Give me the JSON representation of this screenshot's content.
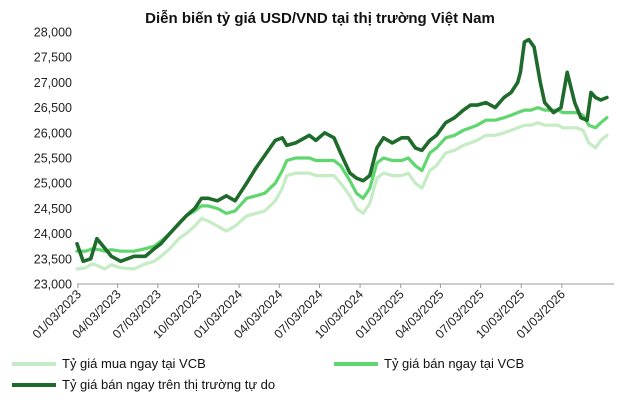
{
  "chart_data": {
    "type": "line",
    "title": "Diễn biến tỷ giá USD/VND tại thị trường Việt Nam",
    "xlabel": "",
    "ylabel": "",
    "ylim": [
      23000,
      28000
    ],
    "yticks": [
      23000,
      23500,
      24000,
      24500,
      25000,
      25500,
      26000,
      26500,
      27000,
      27500,
      28000
    ],
    "ytick_labels": [
      "23,000",
      "23,500",
      "24,000",
      "24,500",
      "25,000",
      "25,500",
      "26,000",
      "26,500",
      "27,000",
      "27,500",
      "28,000"
    ],
    "xlim": [
      "2023-01-01",
      "2026-05-01"
    ],
    "xticks": [
      "2023-01-03",
      "2023-04-03",
      "2023-07-03",
      "2023-10-03",
      "2024-01-03",
      "2024-04-03",
      "2024-07-03",
      "2024-10-03",
      "2025-01-03",
      "2025-04-03",
      "2025-07-03",
      "2025-10-03",
      "2026-01-03"
    ],
    "xtick_labels": [
      "01/03/2023",
      "04/03/2023",
      "07/03/2023",
      "10/03/2023",
      "01/03/2024",
      "04/03/2024",
      "07/03/2024",
      "10/03/2024",
      "01/03/2025",
      "04/03/2025",
      "07/03/2025",
      "10/03/2025",
      "01/03/2026"
    ],
    "grid": false,
    "legend_position": "bottom",
    "series": [
      {
        "name": "Tỷ giá mua ngay tại VCB",
        "color": "#c5ecc4",
        "x": [
          "2023-01-01",
          "2023-01-20",
          "2023-02-05",
          "2023-02-20",
          "2023-03-05",
          "2023-03-20",
          "2023-04-10",
          "2023-05-10",
          "2023-06-05",
          "2023-06-25",
          "2023-07-10",
          "2023-07-30",
          "2023-08-20",
          "2023-09-05",
          "2023-09-25",
          "2023-10-10",
          "2023-10-25",
          "2023-11-15",
          "2023-12-05",
          "2023-12-25",
          "2024-01-20",
          "2024-02-10",
          "2024-03-01",
          "2024-03-25",
          "2024-04-10",
          "2024-04-20",
          "2024-05-10",
          "2024-06-10",
          "2024-06-25",
          "2024-07-15",
          "2024-08-05",
          "2024-08-20",
          "2024-09-10",
          "2024-09-25",
          "2024-10-10",
          "2024-10-25",
          "2024-11-10",
          "2024-11-25",
          "2024-12-15",
          "2025-01-05",
          "2025-01-20",
          "2025-02-05",
          "2025-02-20",
          "2025-03-10",
          "2025-03-25",
          "2025-04-15",
          "2025-05-05",
          "2025-05-25",
          "2025-06-10",
          "2025-06-25",
          "2025-07-15",
          "2025-08-05",
          "2025-08-25",
          "2025-09-10",
          "2025-09-25",
          "2025-10-10",
          "2025-10-25",
          "2025-11-10",
          "2025-11-25",
          "2025-12-10",
          "2025-12-25",
          "2026-01-05",
          "2026-01-20",
          "2026-02-05",
          "2026-02-20",
          "2026-03-05",
          "2026-03-20",
          "2026-04-01",
          "2026-04-15"
        ],
        "values": [
          23300,
          23320,
          23400,
          23350,
          23300,
          23380,
          23320,
          23300,
          23400,
          23450,
          23550,
          23700,
          23900,
          24000,
          24150,
          24300,
          24250,
          24150,
          24050,
          24150,
          24350,
          24400,
          24450,
          24650,
          24900,
          25150,
          25200,
          25200,
          25150,
          25150,
          25150,
          25000,
          24750,
          24500,
          24400,
          24600,
          25100,
          25200,
          25150,
          25150,
          25200,
          25000,
          24900,
          25250,
          25350,
          25600,
          25650,
          25750,
          25800,
          25850,
          25950,
          25950,
          26000,
          26050,
          26100,
          26150,
          26150,
          26200,
          26150,
          26150,
          26150,
          26100,
          26100,
          26100,
          26050,
          25800,
          25700,
          25850,
          25950
        ]
      },
      {
        "name": "Tỷ giá bán ngay tại VCB",
        "color": "#5fd66e",
        "x": [
          "2023-01-01",
          "2023-01-20",
          "2023-02-05",
          "2023-02-20",
          "2023-03-05",
          "2023-03-20",
          "2023-04-10",
          "2023-05-10",
          "2023-06-05",
          "2023-06-25",
          "2023-07-10",
          "2023-07-30",
          "2023-08-20",
          "2023-09-05",
          "2023-09-25",
          "2023-10-10",
          "2023-10-25",
          "2023-11-15",
          "2023-12-05",
          "2023-12-25",
          "2024-01-20",
          "2024-02-10",
          "2024-03-01",
          "2024-03-25",
          "2024-04-10",
          "2024-04-20",
          "2024-05-10",
          "2024-06-10",
          "2024-06-25",
          "2024-07-15",
          "2024-08-05",
          "2024-08-20",
          "2024-09-10",
          "2024-09-25",
          "2024-10-10",
          "2024-10-25",
          "2024-11-10",
          "2024-11-25",
          "2024-12-15",
          "2025-01-05",
          "2025-01-20",
          "2025-02-05",
          "2025-02-20",
          "2025-03-10",
          "2025-03-25",
          "2025-04-15",
          "2025-05-05",
          "2025-05-25",
          "2025-06-10",
          "2025-06-25",
          "2025-07-15",
          "2025-08-05",
          "2025-08-25",
          "2025-09-10",
          "2025-09-25",
          "2025-10-10",
          "2025-10-25",
          "2025-11-10",
          "2025-11-25",
          "2025-12-10",
          "2025-12-25",
          "2026-01-05",
          "2026-01-20",
          "2026-02-05",
          "2026-02-20",
          "2026-03-05",
          "2026-03-20",
          "2026-04-01",
          "2026-04-15"
        ],
        "values": [
          23650,
          23650,
          23700,
          23680,
          23650,
          23680,
          23650,
          23650,
          23700,
          23750,
          23850,
          24000,
          24200,
          24350,
          24450,
          24550,
          24550,
          24500,
          24400,
          24450,
          24700,
          24750,
          24800,
          25000,
          25250,
          25450,
          25500,
          25500,
          25450,
          25450,
          25450,
          25350,
          25050,
          24800,
          24700,
          24900,
          25400,
          25500,
          25450,
          25450,
          25500,
          25350,
          25250,
          25600,
          25700,
          25900,
          25950,
          26050,
          26100,
          26150,
          26250,
          26250,
          26300,
          26350,
          26400,
          26450,
          26450,
          26500,
          26450,
          26450,
          26450,
          26400,
          26400,
          26400,
          26350,
          26150,
          26100,
          26200,
          26300
        ]
      },
      {
        "name": "Tỷ giá bán ngay trên thị trường tự do",
        "color": "#1f6b2b",
        "x": [
          "2023-01-01",
          "2023-01-15",
          "2023-02-01",
          "2023-02-15",
          "2023-03-01",
          "2023-03-20",
          "2023-04-10",
          "2023-05-10",
          "2023-06-05",
          "2023-06-25",
          "2023-07-10",
          "2023-07-30",
          "2023-08-20",
          "2023-09-05",
          "2023-09-25",
          "2023-10-10",
          "2023-10-25",
          "2023-11-15",
          "2023-12-05",
          "2023-12-25",
          "2024-01-20",
          "2024-02-10",
          "2024-03-01",
          "2024-03-25",
          "2024-04-10",
          "2024-04-20",
          "2024-05-10",
          "2024-06-10",
          "2024-06-25",
          "2024-07-15",
          "2024-08-05",
          "2024-08-20",
          "2024-09-10",
          "2024-09-25",
          "2024-10-10",
          "2024-10-25",
          "2024-11-10",
          "2024-11-25",
          "2024-12-15",
          "2025-01-05",
          "2025-01-20",
          "2025-02-05",
          "2025-02-20",
          "2025-03-10",
          "2025-03-25",
          "2025-04-15",
          "2025-05-05",
          "2025-05-25",
          "2025-06-10",
          "2025-06-25",
          "2025-07-15",
          "2025-08-05",
          "2025-08-25",
          "2025-09-10",
          "2025-09-25",
          "2025-10-01",
          "2025-10-10",
          "2025-10-20",
          "2025-11-01",
          "2025-11-15",
          "2025-11-25",
          "2025-12-05",
          "2025-12-15",
          "2026-01-01",
          "2026-01-15",
          "2026-02-01",
          "2026-02-15",
          "2026-03-01",
          "2026-03-10",
          "2026-03-20",
          "2026-04-01",
          "2026-04-15"
        ],
        "values": [
          23800,
          23450,
          23500,
          23900,
          23750,
          23550,
          23450,
          23550,
          23550,
          23700,
          23800,
          24000,
          24200,
          24350,
          24500,
          24700,
          24700,
          24650,
          24750,
          24650,
          25000,
          25300,
          25550,
          25850,
          25900,
          25750,
          25800,
          25950,
          25850,
          26000,
          25900,
          25600,
          25200,
          25100,
          25050,
          25150,
          25700,
          25900,
          25800,
          25900,
          25900,
          25700,
          25650,
          25850,
          25950,
          26200,
          26300,
          26450,
          26550,
          26550,
          26600,
          26500,
          26700,
          26800,
          27000,
          27200,
          27800,
          27850,
          27700,
          27000,
          26600,
          26500,
          26400,
          26500,
          27200,
          26600,
          26300,
          26250,
          26800,
          26700,
          26650,
          26700
        ]
      }
    ]
  }
}
